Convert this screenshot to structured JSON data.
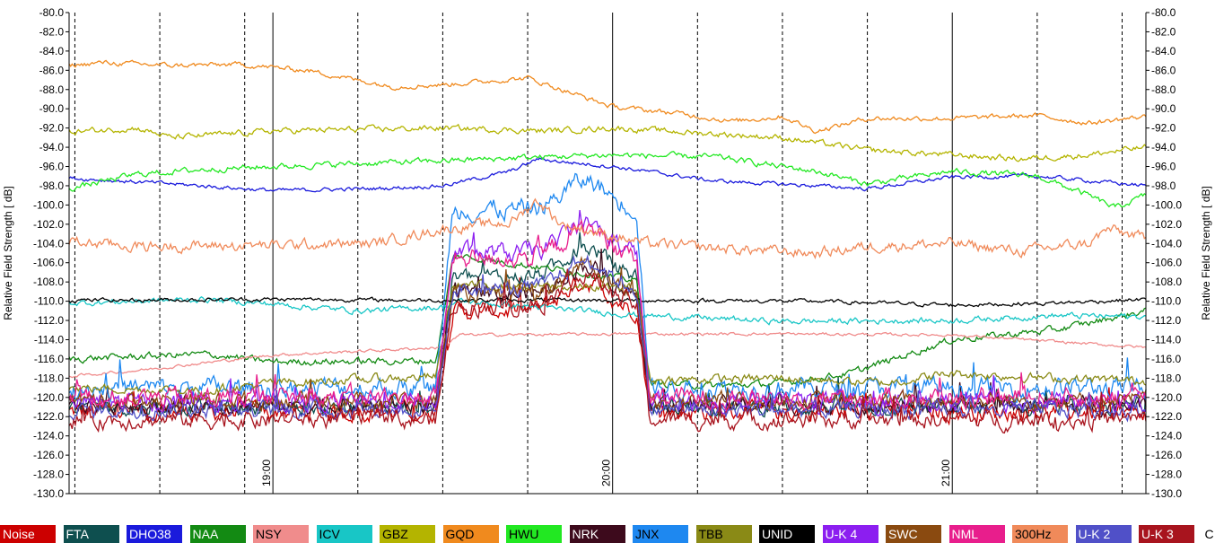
{
  "chart_data": {
    "type": "line",
    "ylabel_left": "Relative Field Strength [ dB]",
    "ylabel_right": "Relative Field Strength [ dB]",
    "ylim": [
      -130,
      -80
    ],
    "yticks": [
      "-80.0",
      "-82.0",
      "-84.0",
      "-86.0",
      "-88.0",
      "-90.0",
      "-92.0",
      "-94.0",
      "-96.0",
      "-98.0",
      "-100.0",
      "-102.0",
      "-104.0",
      "-106.0",
      "-108.0",
      "-110.0",
      "-112.0",
      "-114.0",
      "-116.0",
      "-118.0",
      "-120.0",
      "-122.0",
      "-124.0",
      "-126.0",
      "-128.0",
      "-130.0"
    ],
    "xlim": [
      18.4,
      21.57
    ],
    "x_hour_ticks": [
      {
        "x": 19.0,
        "label": "19:00"
      },
      {
        "x": 20.0,
        "label": "20:00"
      },
      {
        "x": 21.0,
        "label": "21:00"
      }
    ],
    "x_minor_ticks": [
      18.417,
      18.667,
      18.917,
      19.25,
      19.5,
      19.75,
      20.25,
      20.5,
      20.75,
      21.25,
      21.5
    ],
    "grid": true,
    "legend_position": "bottom",
    "series": [
      {
        "name": "Noise",
        "color": "#cc0000",
        "text_color": "#ffffff",
        "base": -121.5,
        "event": 10.5,
        "noise": 0.9
      },
      {
        "name": "FTA",
        "color": "#0e4f4f",
        "text_color": "#ffffff",
        "base": -121.0,
        "event": 13.5,
        "noise": 0.8
      },
      {
        "name": "DHO38",
        "color": "#1a1adc",
        "text_color": "#ffffff",
        "points": [
          [
            18.4,
            -97.2
          ],
          [
            18.7,
            -97.8
          ],
          [
            19.0,
            -98.5
          ],
          [
            19.3,
            -98.3
          ],
          [
            19.5,
            -98.0
          ],
          [
            19.7,
            -96.5
          ],
          [
            19.78,
            -95.2
          ],
          [
            19.85,
            -95.5
          ],
          [
            20.0,
            -96.0
          ],
          [
            20.3,
            -97.5
          ],
          [
            20.6,
            -98.0
          ],
          [
            20.75,
            -98.3
          ],
          [
            21.0,
            -97.1
          ],
          [
            21.25,
            -97.0
          ],
          [
            21.57,
            -98.0
          ]
        ],
        "noise": 0.2
      },
      {
        "name": "NAA",
        "color": "#138a13",
        "text_color": "#ffffff",
        "points": [
          [
            18.4,
            -116.0
          ],
          [
            18.8,
            -115.5
          ],
          [
            19.0,
            -116.3
          ],
          [
            19.5,
            -116.2
          ],
          [
            19.55,
            -115.8
          ],
          [
            20.1,
            -118.5
          ],
          [
            20.3,
            -118.8
          ],
          [
            20.5,
            -118.5
          ],
          [
            20.7,
            -117.5
          ],
          [
            21.0,
            -114.0
          ],
          [
            21.3,
            -113.0
          ],
          [
            21.57,
            -111.0
          ]
        ],
        "noise": 0.35,
        "event": 10.5
      },
      {
        "name": "NSY",
        "color": "#f08c8c",
        "text_color": "#000000",
        "points": [
          [
            18.4,
            -117.8
          ],
          [
            18.6,
            -117.2
          ],
          [
            19.0,
            -115.6
          ],
          [
            19.5,
            -114.8
          ],
          [
            19.55,
            -113.5
          ],
          [
            20.1,
            -113.4
          ],
          [
            20.5,
            -113.4
          ],
          [
            21.0,
            -113.5
          ],
          [
            21.3,
            -114.2
          ],
          [
            21.57,
            -114.8
          ]
        ],
        "noise": 0.15
      },
      {
        "name": "ICV",
        "color": "#18c6c6",
        "text_color": "#000000",
        "points": [
          [
            18.4,
            -110.2
          ],
          [
            18.8,
            -109.8
          ],
          [
            19.0,
            -110.3
          ],
          [
            19.25,
            -111.0
          ],
          [
            19.5,
            -110.6
          ],
          [
            19.55,
            -110.0
          ],
          [
            20.1,
            -111.5
          ],
          [
            20.5,
            -112.1
          ],
          [
            21.0,
            -112.0
          ],
          [
            21.3,
            -111.5
          ],
          [
            21.57,
            -111.6
          ]
        ],
        "noise": 0.3
      },
      {
        "name": "GBZ",
        "color": "#b4b400",
        "text_color": "#000000",
        "points": [
          [
            18.4,
            -92.4
          ],
          [
            18.6,
            -92.0
          ],
          [
            18.7,
            -93.0
          ],
          [
            19.0,
            -92.3
          ],
          [
            19.5,
            -92.0
          ],
          [
            19.8,
            -92.3
          ],
          [
            20.0,
            -92.0
          ],
          [
            20.5,
            -93.0
          ],
          [
            20.75,
            -94.3
          ],
          [
            21.0,
            -94.8
          ],
          [
            21.2,
            -95.2
          ],
          [
            21.4,
            -94.8
          ],
          [
            21.57,
            -94.0
          ]
        ],
        "noise": 0.3
      },
      {
        "name": "GQD",
        "color": "#f08a1e",
        "text_color": "#000000",
        "points": [
          [
            18.4,
            -85.5
          ],
          [
            18.5,
            -85.2
          ],
          [
            18.7,
            -85.5
          ],
          [
            18.9,
            -85.4
          ],
          [
            19.1,
            -86.0
          ],
          [
            19.35,
            -87.7
          ],
          [
            19.5,
            -87.5
          ],
          [
            19.75,
            -86.8
          ],
          [
            20.0,
            -89.8
          ],
          [
            20.2,
            -90.5
          ],
          [
            20.35,
            -91.3
          ],
          [
            20.5,
            -90.8
          ],
          [
            20.6,
            -92.3
          ],
          [
            20.75,
            -91.0
          ],
          [
            21.0,
            -91.0
          ],
          [
            21.25,
            -90.7
          ],
          [
            21.4,
            -91.5
          ],
          [
            21.57,
            -90.8
          ]
        ],
        "noise": 0.25
      },
      {
        "name": "HWU",
        "color": "#22e822",
        "text_color": "#000000",
        "points": [
          [
            18.4,
            -98.3
          ],
          [
            18.6,
            -96.8
          ],
          [
            18.8,
            -96.3
          ],
          [
            19.0,
            -96.0
          ],
          [
            19.5,
            -95.4
          ],
          [
            19.8,
            -95.0
          ],
          [
            20.0,
            -94.8
          ],
          [
            20.3,
            -95.0
          ],
          [
            20.6,
            -96.5
          ],
          [
            20.75,
            -97.8
          ],
          [
            21.0,
            -96.5
          ],
          [
            21.25,
            -97.0
          ],
          [
            21.4,
            -99.0
          ],
          [
            21.48,
            -100.3
          ],
          [
            21.57,
            -99.0
          ]
        ],
        "noise": 0.3
      },
      {
        "name": "NRK",
        "color": "#3d0a1c",
        "text_color": "#ffffff",
        "base": -120.8,
        "event": 11.5,
        "noise": 0.8
      },
      {
        "name": "JNX",
        "color": "#1e88f0",
        "text_color": "#000000",
        "base": -119.0,
        "event": 18.5,
        "noise": 1.0
      },
      {
        "name": "TBB",
        "color": "#8a8a16",
        "text_color": "#000000",
        "points": [
          [
            18.4,
            -119.0
          ],
          [
            18.8,
            -119.3
          ],
          [
            19.0,
            -118.5
          ],
          [
            19.5,
            -117.8
          ],
          [
            20.1,
            -118.2
          ],
          [
            20.5,
            -118.0
          ],
          [
            20.8,
            -118.5
          ],
          [
            21.0,
            -117.5
          ],
          [
            21.3,
            -118.0
          ],
          [
            21.57,
            -118.3
          ]
        ],
        "noise": 0.45,
        "event": 9.5
      },
      {
        "name": "UNID",
        "color": "#000000",
        "text_color": "#ffffff",
        "points": [
          [
            18.4,
            -109.9
          ],
          [
            19.0,
            -109.8
          ],
          [
            19.5,
            -109.9
          ],
          [
            20.1,
            -109.9
          ],
          [
            20.6,
            -110.0
          ],
          [
            21.0,
            -110.4
          ],
          [
            21.3,
            -110.2
          ],
          [
            21.57,
            -109.8
          ]
        ],
        "noise": 0.2
      },
      {
        "name": "U-K 4",
        "color": "#8c1ef0",
        "text_color": "#ffffff",
        "base": -120.5,
        "event": 15.5,
        "noise": 0.9
      },
      {
        "name": "SWC",
        "color": "#8a4a10",
        "text_color": "#ffffff",
        "base": -120.3,
        "event": 11.0,
        "noise": 0.8
      },
      {
        "name": "NML",
        "color": "#e81e8c",
        "text_color": "#ffffff",
        "base": -120.0,
        "event": 14.5,
        "noise": 1.0
      },
      {
        "name": "300Hz",
        "color": "#f08a5a",
        "text_color": "#000000",
        "points": [
          [
            18.4,
            -103.8
          ],
          [
            18.6,
            -104.3
          ],
          [
            19.0,
            -104.2
          ],
          [
            19.3,
            -104.0
          ],
          [
            19.5,
            -102.5
          ],
          [
            19.7,
            -101.8
          ],
          [
            19.78,
            -99.5
          ],
          [
            19.85,
            -102.0
          ],
          [
            20.1,
            -104.0
          ],
          [
            20.3,
            -104.5
          ],
          [
            20.6,
            -105.0
          ],
          [
            20.75,
            -104.3
          ],
          [
            21.0,
            -104.0
          ],
          [
            21.2,
            -104.8
          ],
          [
            21.4,
            -104.0
          ],
          [
            21.46,
            -102.5
          ],
          [
            21.57,
            -103.5
          ]
        ],
        "noise": 0.55
      },
      {
        "name": "U-K 2",
        "color": "#5050c8",
        "text_color": "#ffffff",
        "base": -121.3,
        "event": 12.5,
        "noise": 0.8
      },
      {
        "name": "U-K 3",
        "color": "#a8141e",
        "text_color": "#ffffff",
        "base": -122.3,
        "event": 11.8,
        "noise": 0.9
      },
      {
        "name": "C",
        "color": "#ffffff",
        "text_color": "#000000"
      }
    ]
  }
}
